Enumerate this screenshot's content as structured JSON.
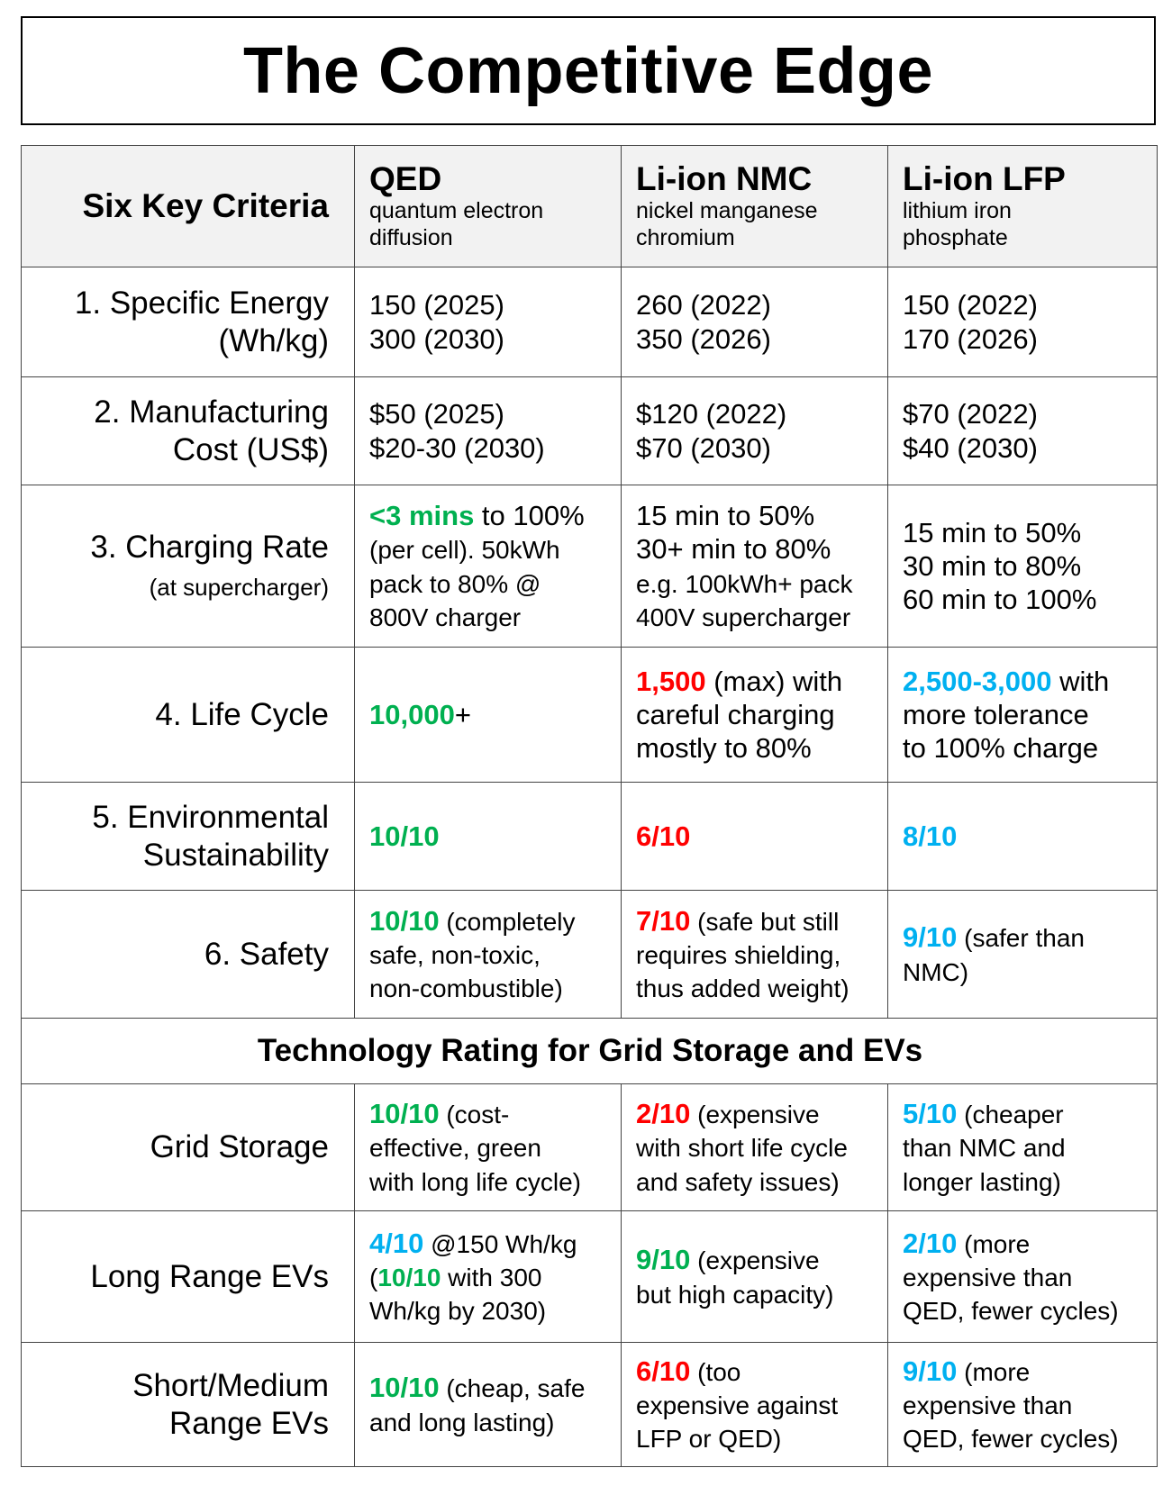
{
  "title": "The Competitive Edge",
  "colors": {
    "green": "#00b050",
    "red": "#ff0000",
    "blue": "#00b0f0"
  },
  "header": {
    "criteria_label": "Six Key Criteria",
    "columns": [
      {
        "name": "QED",
        "desc": "quantum electron\ndiffusion"
      },
      {
        "name": "Li-ion NMC",
        "desc": "nickel manganese\nchromium"
      },
      {
        "name": "Li-ion LFP",
        "desc": "lithium iron\nphosphate"
      }
    ]
  },
  "rows": [
    {
      "criterion": "1. Specific Energy\n(Wh/kg)",
      "sub": "",
      "cells": [
        [
          {
            "t": "150 (2025)\n300 (2030)"
          }
        ],
        [
          {
            "t": "260 (2022)\n350 (2026)"
          }
        ],
        [
          {
            "t": "150 (2022)\n170 (2026)"
          }
        ]
      ]
    },
    {
      "criterion": "2. Manufacturing\nCost (US$)",
      "sub": "",
      "cells": [
        [
          {
            "t": "$50 (2025)\n$20-30 (2030)"
          }
        ],
        [
          {
            "t": "$120 (2022)\n$70 (2030)"
          }
        ],
        [
          {
            "t": "$70 (2022)\n$40 (2030)"
          }
        ]
      ]
    },
    {
      "criterion": "3. Charging Rate",
      "sub": "(at supercharger)",
      "cells": [
        [
          {
            "t": "<3 mins",
            "c": "green",
            "b": 1
          },
          {
            "t": " to 100%"
          },
          {
            "t": "\n(per cell). 50kWh\npack to 80% @\n800V charger",
            "s": 1
          }
        ],
        [
          {
            "t": "15 min to 50%\n30+ min to 80%"
          },
          {
            "t": "\ne.g. 100kWh+ pack\n400V supercharger",
            "s": 1
          }
        ],
        [
          {
            "t": "15 min to 50%\n30 min to 80%\n60 min to 100%"
          }
        ]
      ]
    },
    {
      "criterion": "4. Life Cycle",
      "sub": "",
      "cells": [
        [
          {
            "t": "10,000",
            "c": "green",
            "b": 1
          },
          {
            "t": "+"
          }
        ],
        [
          {
            "t": "1,500",
            "c": "red",
            "b": 1
          },
          {
            "t": " (max) with\ncareful charging\nmostly to 80%"
          }
        ],
        [
          {
            "t": "2,500-3,000",
            "c": "blue",
            "b": 1
          },
          {
            "t": " with\nmore tolerance\nto 100% charge"
          }
        ]
      ]
    },
    {
      "criterion": "5. Environmental\nSustainability",
      "sub": "",
      "cells": [
        [
          {
            "t": "10/10",
            "c": "green",
            "b": 1
          }
        ],
        [
          {
            "t": "6/10",
            "c": "red",
            "b": 1
          }
        ],
        [
          {
            "t": "8/10",
            "c": "blue",
            "b": 1
          }
        ]
      ]
    },
    {
      "criterion": "6. Safety",
      "sub": "",
      "cells": [
        [
          {
            "t": "10/10",
            "c": "green",
            "b": 1
          },
          {
            "t": " (completely\nsafe, non-toxic,\nnon-combustible)",
            "s": 1
          }
        ],
        [
          {
            "t": "7/10",
            "c": "red",
            "b": 1
          },
          {
            "t": " (safe but still\nrequires shielding,\nthus added weight)",
            "s": 1
          }
        ],
        [
          {
            "t": "9/10",
            "c": "blue",
            "b": 1
          },
          {
            "t": " (safer than\nNMC)",
            "s": 1
          }
        ]
      ]
    }
  ],
  "section_title": "Technology Rating for Grid Storage and EVs",
  "ratings": [
    {
      "criterion": "Grid Storage",
      "cells": [
        [
          {
            "t": "10/10",
            "c": "green",
            "b": 1
          },
          {
            "t": " (cost-\neffective, green\nwith long life cycle)",
            "s": 1
          }
        ],
        [
          {
            "t": "2/10",
            "c": "red",
            "b": 1
          },
          {
            "t": " (expensive\nwith short life cycle\nand safety issues)",
            "s": 1
          }
        ],
        [
          {
            "t": "5/10",
            "c": "blue",
            "b": 1
          },
          {
            "t": " (cheaper\nthan NMC and\nlonger lasting)",
            "s": 1
          }
        ]
      ]
    },
    {
      "criterion": "Long Range EVs",
      "cells": [
        [
          {
            "t": "4/10",
            "c": "blue",
            "b": 1
          },
          {
            "t": " @150 Wh/kg\n(",
            "s": 1
          },
          {
            "t": "10/10",
            "c": "green",
            "b": 1,
            "s": 1
          },
          {
            "t": " with 300\nWh/kg by 2030)",
            "s": 1
          }
        ],
        [
          {
            "t": "9/10",
            "c": "green",
            "b": 1
          },
          {
            "t": " (expensive\nbut high capacity)",
            "s": 1
          }
        ],
        [
          {
            "t": "2/10",
            "c": "blue",
            "b": 1
          },
          {
            "t": " (more\nexpensive than\nQED, fewer cycles)",
            "s": 1
          }
        ]
      ]
    },
    {
      "criterion": "Short/Medium\nRange EVs",
      "cells": [
        [
          {
            "t": "10/10",
            "c": "green",
            "b": 1
          },
          {
            "t": " (cheap, safe\nand long lasting)",
            "s": 1
          }
        ],
        [
          {
            "t": "6/10",
            "c": "red",
            "b": 1
          },
          {
            "t": " (too\nexpensive against\nLFP or QED)",
            "s": 1
          }
        ],
        [
          {
            "t": "9/10",
            "c": "blue",
            "b": 1
          },
          {
            "t": " (more\nexpensive than\nQED, fewer cycles)",
            "s": 1
          }
        ]
      ]
    }
  ]
}
